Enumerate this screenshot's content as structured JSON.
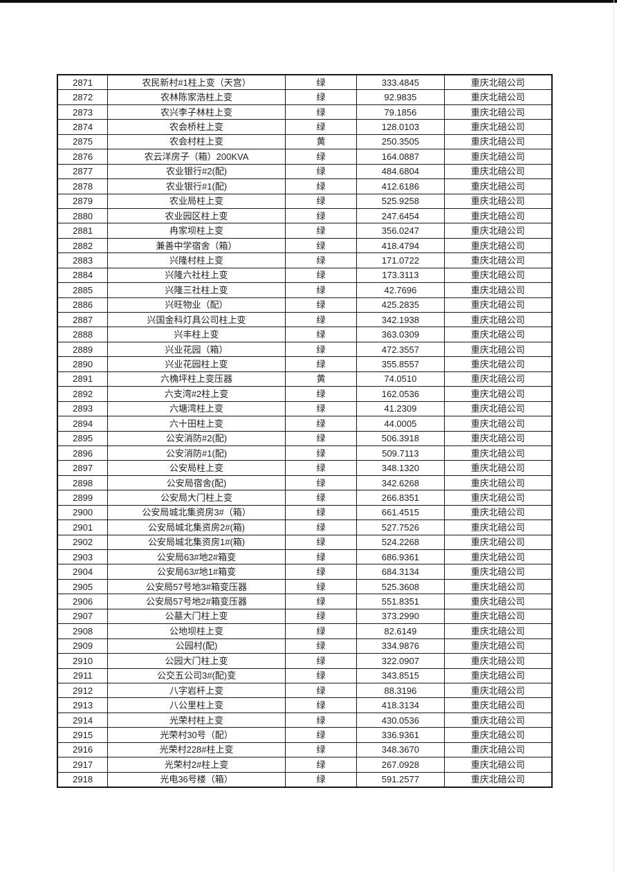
{
  "page": {
    "background": "#ffffff",
    "top_bar_color": "#0e0e0e",
    "edge_line_color": "#e6e6e6",
    "table_border_color": "#161616",
    "text_color": "#212121"
  },
  "table": {
    "fields": [
      "row_number",
      "transformer_name",
      "light_color",
      "line_loss_value",
      "company"
    ],
    "rows": [
      [
        "2871",
        "农民新村#1柱上变（天宫）",
        "绿",
        "333.4845",
        "重庆北碚公司"
      ],
      [
        "2872",
        "农林陈家浩柱上变",
        "绿",
        "92.9835",
        "重庆北碚公司"
      ],
      [
        "2873",
        "农兴李子林柱上变",
        "绿",
        "79.1856",
        "重庆北碚公司"
      ],
      [
        "2874",
        "农会桥柱上变",
        "绿",
        "128.0103",
        "重庆北碚公司"
      ],
      [
        "2875",
        "农会村柱上变",
        "黄",
        "250.3505",
        "重庆北碚公司"
      ],
      [
        "2876",
        "农云洋房子（箱）200KVA",
        "绿",
        "164.0887",
        "重庆北碚公司"
      ],
      [
        "2877",
        "农业银行#2(配)",
        "绿",
        "484.6804",
        "重庆北碚公司"
      ],
      [
        "2878",
        "农业银行#1(配)",
        "绿",
        "412.6186",
        "重庆北碚公司"
      ],
      [
        "2879",
        "农业局柱上变",
        "绿",
        "525.9258",
        "重庆北碚公司"
      ],
      [
        "2880",
        "农业园区柱上变",
        "绿",
        "247.6454",
        "重庆北碚公司"
      ],
      [
        "2881",
        "冉家坝柱上变",
        "绿",
        "356.0247",
        "重庆北碚公司"
      ],
      [
        "2882",
        "兼善中学宿舍（箱）",
        "绿",
        "418.4794",
        "重庆北碚公司"
      ],
      [
        "2883",
        "兴隆村柱上变",
        "绿",
        "171.0722",
        "重庆北碚公司"
      ],
      [
        "2884",
        "兴隆六社柱上变",
        "绿",
        "173.3113",
        "重庆北碚公司"
      ],
      [
        "2885",
        "兴隆三社柱上变",
        "绿",
        "42.7696",
        "重庆北碚公司"
      ],
      [
        "2886",
        "兴旺物业（配）",
        "绿",
        "425.2835",
        "重庆北碚公司"
      ],
      [
        "2887",
        "兴国金科灯具公司柱上变",
        "绿",
        "342.1938",
        "重庆北碚公司"
      ],
      [
        "2888",
        "兴丰柱上变",
        "绿",
        "363.0309",
        "重庆北碚公司"
      ],
      [
        "2889",
        "兴业花园（箱）",
        "绿",
        "472.3557",
        "重庆北碚公司"
      ],
      [
        "2890",
        "兴业花园柱上变",
        "绿",
        "355.8557",
        "重庆北碚公司"
      ],
      [
        "2891",
        "六桷坪柱上变压器",
        "黄",
        "74.0510",
        "重庆北碚公司"
      ],
      [
        "2892",
        "六支湾#2柱上变",
        "绿",
        "162.0536",
        "重庆北碚公司"
      ],
      [
        "2893",
        "六塘湾柱上变",
        "绿",
        "41.2309",
        "重庆北碚公司"
      ],
      [
        "2894",
        "六十田柱上变",
        "绿",
        "44.0005",
        "重庆北碚公司"
      ],
      [
        "2895",
        "公安消防#2(配)",
        "绿",
        "506.3918",
        "重庆北碚公司"
      ],
      [
        "2896",
        "公安消防#1(配)",
        "绿",
        "509.7113",
        "重庆北碚公司"
      ],
      [
        "2897",
        "公安局柱上变",
        "绿",
        "348.1320",
        "重庆北碚公司"
      ],
      [
        "2898",
        "公安局宿舍(配)",
        "绿",
        "342.6268",
        "重庆北碚公司"
      ],
      [
        "2899",
        "公安局大门柱上变",
        "绿",
        "266.8351",
        "重庆北碚公司"
      ],
      [
        "2900",
        "公安局城北集资房3#（箱）",
        "绿",
        "661.4515",
        "重庆北碚公司"
      ],
      [
        "2901",
        "公安局城北集资房2#(箱)",
        "绿",
        "527.7526",
        "重庆北碚公司"
      ],
      [
        "2902",
        "公安局城北集资房1#(箱)",
        "绿",
        "524.2268",
        "重庆北碚公司"
      ],
      [
        "2903",
        "公安局63#地2#箱变",
        "绿",
        "686.9361",
        "重庆北碚公司"
      ],
      [
        "2904",
        "公安局63#地1#箱变",
        "绿",
        "684.3134",
        "重庆北碚公司"
      ],
      [
        "2905",
        "公安局57号地3#箱变压器",
        "绿",
        "525.3608",
        "重庆北碚公司"
      ],
      [
        "2906",
        "公安局57号地2#箱变压器",
        "绿",
        "551.8351",
        "重庆北碚公司"
      ],
      [
        "2907",
        "公墓大门柱上变",
        "绿",
        "373.2990",
        "重庆北碚公司"
      ],
      [
        "2908",
        "公地坝柱上变",
        "绿",
        "82.6149",
        "重庆北碚公司"
      ],
      [
        "2909",
        "公园村(配)",
        "绿",
        "334.9876",
        "重庆北碚公司"
      ],
      [
        "2910",
        "公园大门柱上变",
        "绿",
        "322.0907",
        "重庆北碚公司"
      ],
      [
        "2911",
        "公交五公司3#(配)变",
        "绿",
        "343.8515",
        "重庆北碚公司"
      ],
      [
        "2912",
        "八字岩杆上变",
        "绿",
        "88.3196",
        "重庆北碚公司"
      ],
      [
        "2913",
        "八公里柱上变",
        "绿",
        "418.3134",
        "重庆北碚公司"
      ],
      [
        "2914",
        "光荣村柱上变",
        "绿",
        "430.0536",
        "重庆北碚公司"
      ],
      [
        "2915",
        "光荣村30号（配）",
        "绿",
        "336.9361",
        "重庆北碚公司"
      ],
      [
        "2916",
        "光荣村228#柱上变",
        "绿",
        "348.3670",
        "重庆北碚公司"
      ],
      [
        "2917",
        "光荣村2#柱上变",
        "绿",
        "267.0928",
        "重庆北碚公司"
      ],
      [
        "2918",
        "光电36号楼（箱）",
        "绿",
        "591.2577",
        "重庆北碚公司"
      ]
    ]
  }
}
